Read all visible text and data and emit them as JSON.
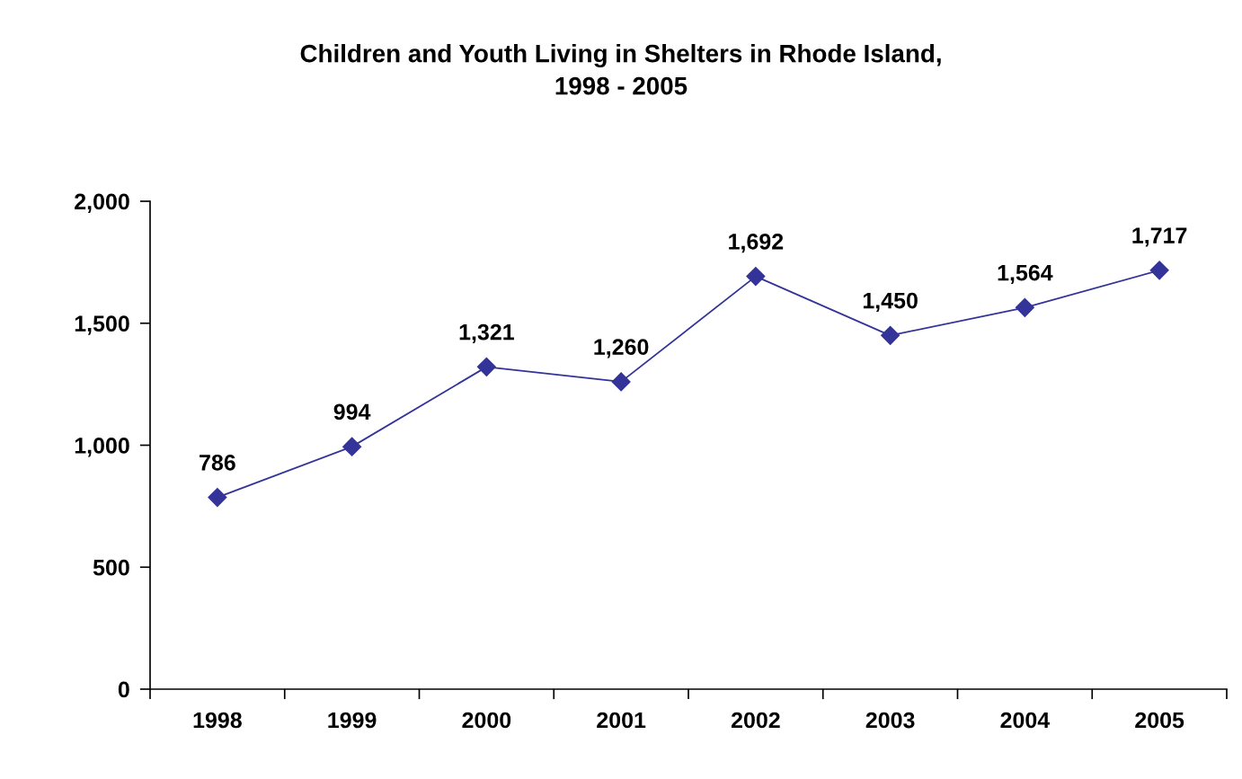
{
  "chart_data": {
    "type": "line",
    "title": "Children and Youth Living in Shelters in Rhode Island,\n1998 - 2005",
    "categories": [
      "1998",
      "1999",
      "2000",
      "2001",
      "2002",
      "2003",
      "2004",
      "2005"
    ],
    "series": [
      {
        "color": "#333399",
        "values": [
          786,
          994,
          1321,
          1260,
          1692,
          1450,
          1564,
          1717
        ]
      }
    ],
    "ylim": [
      0,
      2000
    ],
    "yticks": [
      {
        "value": 0,
        "label": "0"
      },
      {
        "value": 500,
        "label": "500"
      },
      {
        "value": 1000,
        "label": "1,000"
      },
      {
        "value": 1500,
        "label": "1,500"
      },
      {
        "value": 2000,
        "label": "2,000"
      }
    ],
    "value_labels": [
      "786",
      "994",
      "1,321",
      "1,260",
      "1,692",
      "1,450",
      "1,564",
      "1,717"
    ],
    "marker": "diamond",
    "line_style": "solid",
    "grid": false,
    "legend": false
  }
}
